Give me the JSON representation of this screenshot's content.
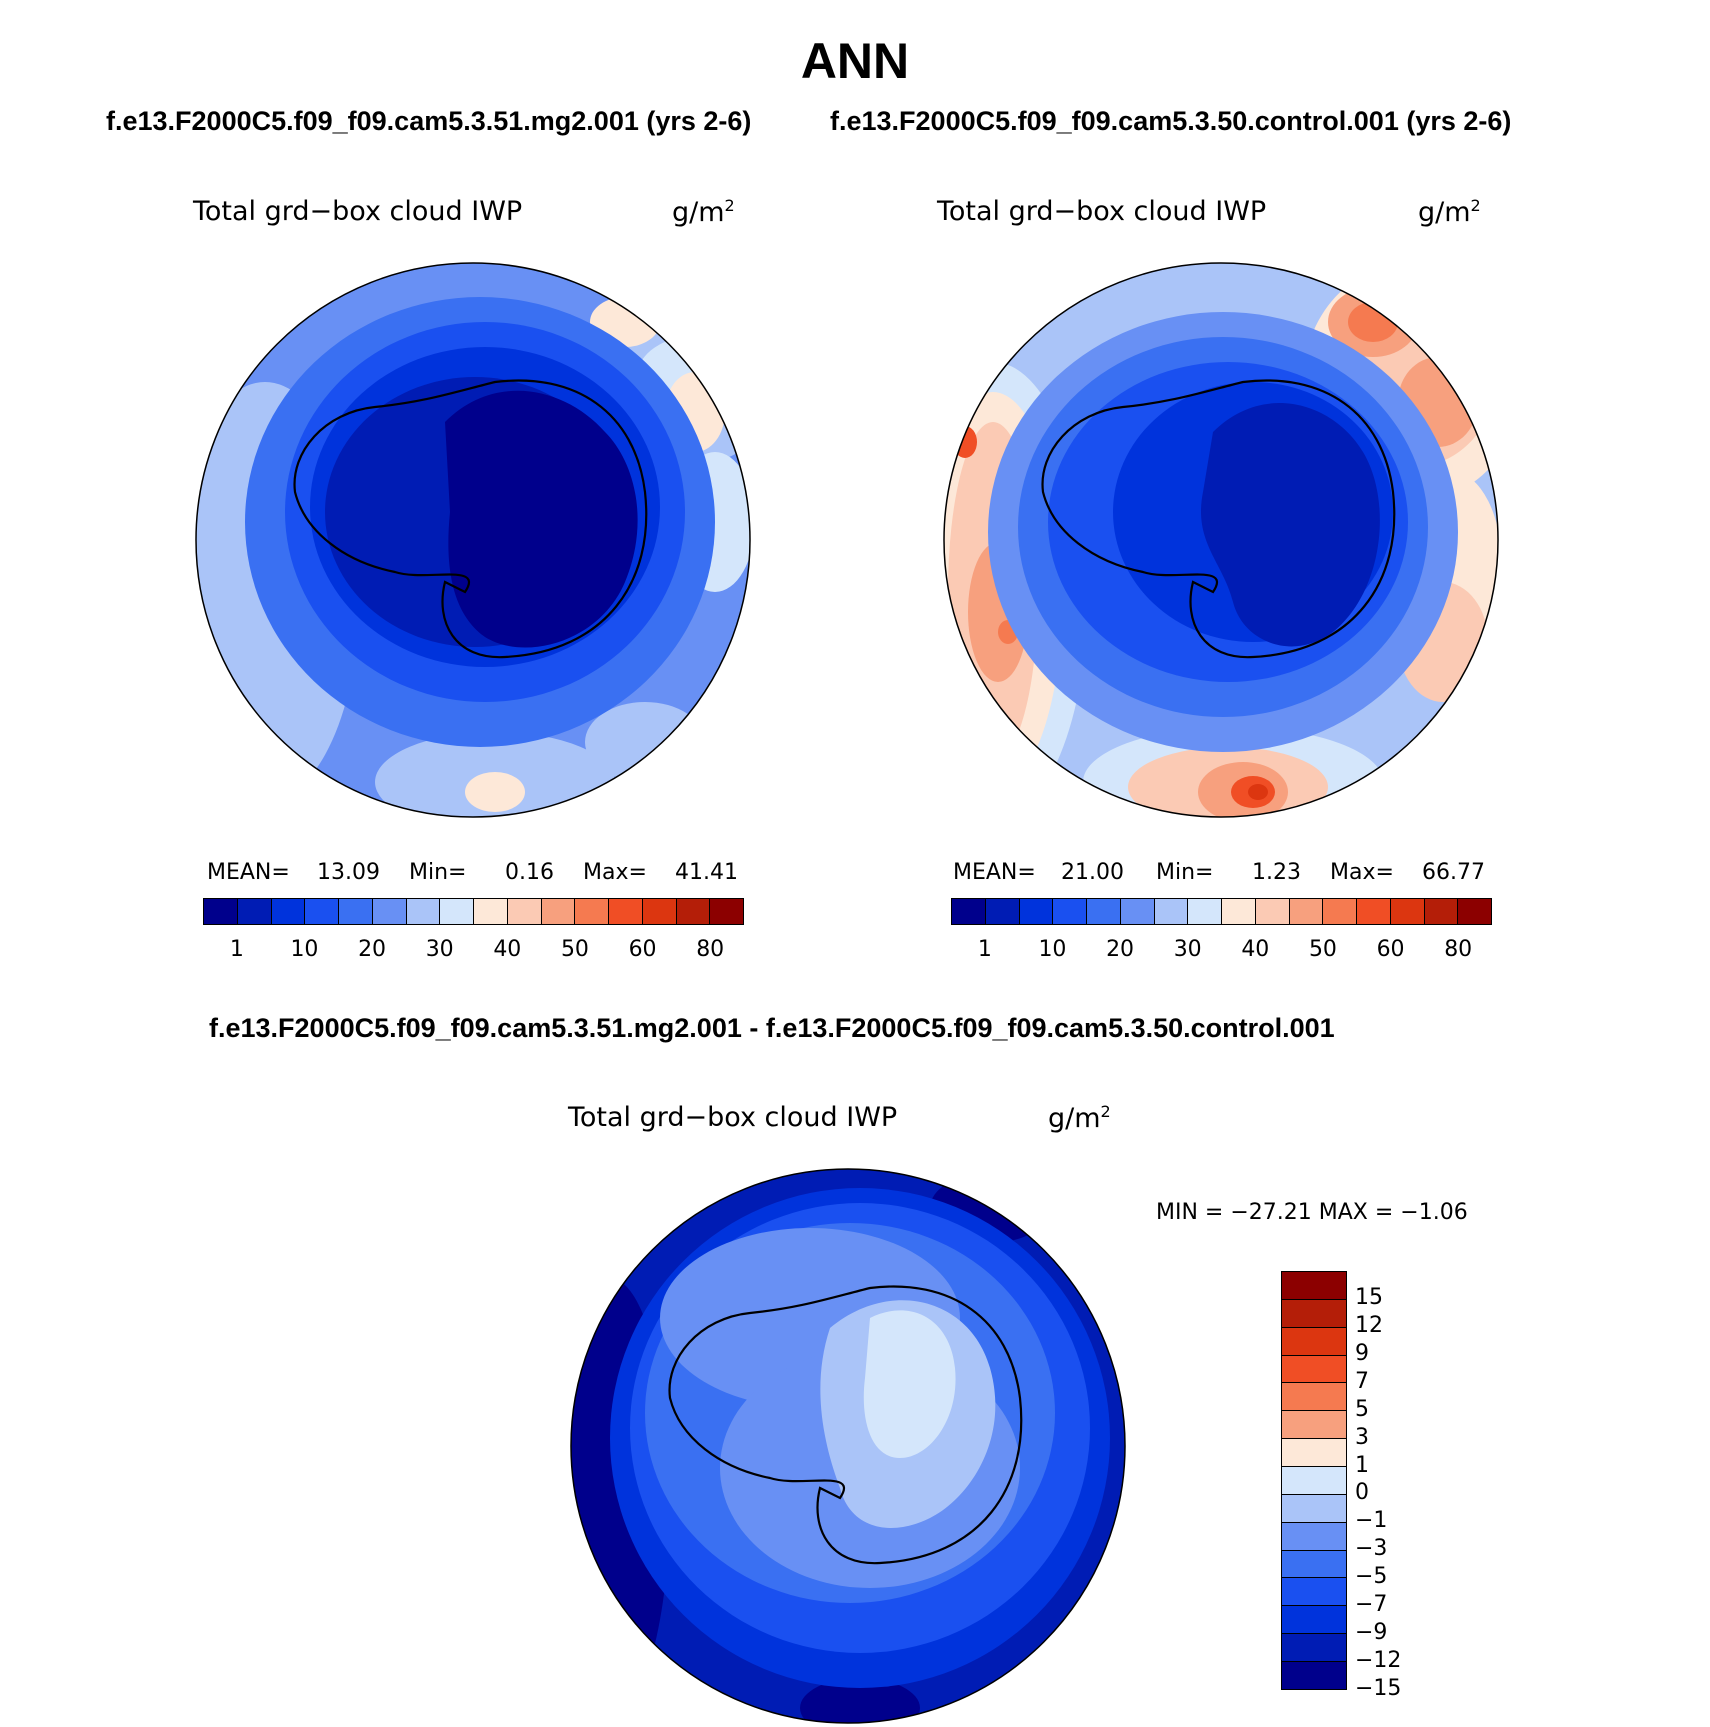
{
  "title": "ANN",
  "subtitle_left": "f.e13.F2000C5.f09_f09.cam5.3.51.mg2.001 (yrs 2-6)",
  "subtitle_right": "f.e13.F2000C5.f09_f09.cam5.3.50.control.001 (yrs 2-6)",
  "diff_title": "f.e13.F2000C5.f09_f09.cam5.3.51.mg2.001 - f.e13.F2000C5.f09_f09.cam5.3.50.control.001",
  "variable": "Total grd−box cloud IWP",
  "units_base": "g/m",
  "units_exp": "2",
  "panels": {
    "left": {
      "mean_label": "MEAN=",
      "mean": "13.09",
      "min_label": "Min=",
      "min": "0.16",
      "max_label": "Max=",
      "max": "41.41"
    },
    "right": {
      "mean_label": "MEAN=",
      "mean": "21.00",
      "min_label": "Min=",
      "min": "1.23",
      "max_label": "Max=",
      "max": "66.77"
    },
    "diff": {
      "minmax_text": "MIN = −27.21  MAX =   −1.06"
    }
  },
  "colorbar_abs": {
    "colors": [
      "#00008c",
      "#001cb4",
      "#0033dc",
      "#1a50f0",
      "#3a70f2",
      "#6890f4",
      "#aac4f8",
      "#d4e6fb",
      "#fde8d8",
      "#fbcab4",
      "#f7a07e",
      "#f57a50",
      "#f04e25",
      "#dc3610",
      "#b41e08",
      "#8c0000"
    ],
    "ticks": [
      "1",
      "10",
      "20",
      "30",
      "40",
      "50",
      "60",
      "80"
    ]
  },
  "colorbar_diff": {
    "colors": [
      "#8c0000",
      "#b41e08",
      "#dc3610",
      "#f04e25",
      "#f57a50",
      "#f7a07e",
      "#fde8d8",
      "#d4e6fb",
      "#aac4f8",
      "#6890f4",
      "#3a70f2",
      "#1a50f0",
      "#0033dc",
      "#001cb4",
      "#00008c"
    ],
    "ticks": [
      "15",
      "12",
      "9",
      "7",
      "5",
      "3",
      "1",
      "0",
      "−1",
      "−3",
      "−5",
      "−7",
      "−9",
      "−12",
      "−15"
    ]
  }
}
